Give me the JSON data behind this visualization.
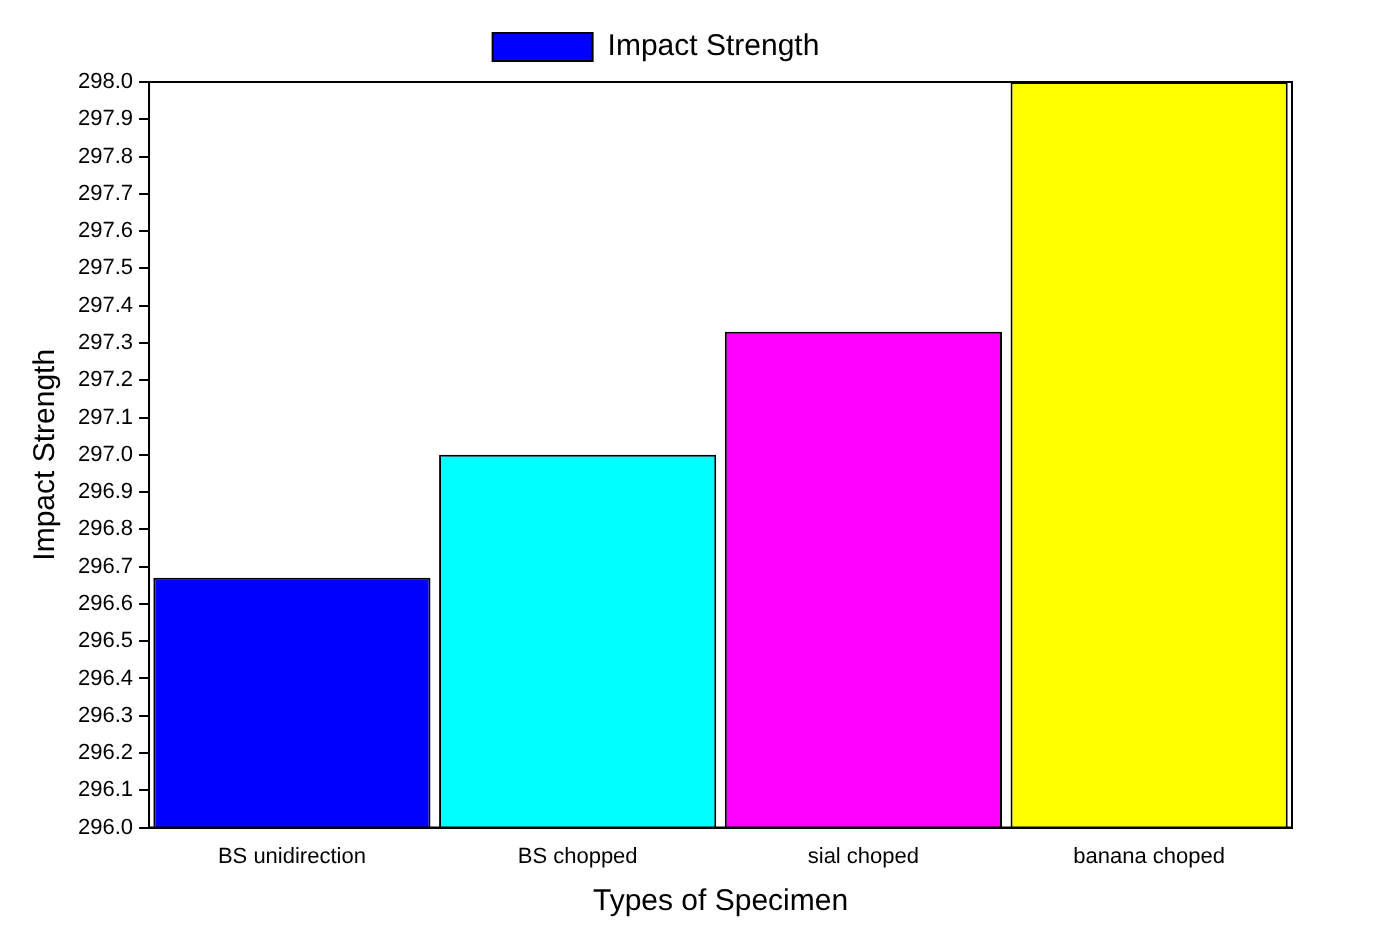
{
  "chart_data": {
    "type": "bar",
    "xlabel": "Types of Specimen",
    "ylabel": "Impact Strength",
    "categories": [
      "BS unidirection",
      "BS chopped",
      "sial choped",
      "banana choped"
    ],
    "series": [
      {
        "name": "Impact Strength",
        "color": "#0000ff",
        "colors": [
          "#0000ff",
          "#00ffff",
          "#ff00ff",
          "#ffff00"
        ],
        "values": [
          296.67,
          297.0,
          297.33,
          298.0
        ]
      }
    ],
    "ylim": [
      296.0,
      298.0
    ],
    "yticks": [
      {
        "value": 296.0,
        "label": "296.0"
      },
      {
        "value": 296.1,
        "label": "296.1"
      },
      {
        "value": 296.2,
        "label": "296.2"
      },
      {
        "value": 296.3,
        "label": "296.3"
      },
      {
        "value": 296.4,
        "label": "296.4"
      },
      {
        "value": 296.5,
        "label": "296.5"
      },
      {
        "value": 296.6,
        "label": "296.6"
      },
      {
        "value": 296.7,
        "label": "296.7"
      },
      {
        "value": 296.8,
        "label": "296.8"
      },
      {
        "value": 296.9,
        "label": "296.9"
      },
      {
        "value": 297.0,
        "label": "297.0"
      },
      {
        "value": 297.1,
        "label": "297.1"
      },
      {
        "value": 297.2,
        "label": "297.2"
      },
      {
        "value": 297.3,
        "label": "297.3"
      },
      {
        "value": 297.4,
        "label": "297.4"
      },
      {
        "value": 297.5,
        "label": "297.5"
      },
      {
        "value": 297.6,
        "label": "297.6"
      },
      {
        "value": 297.7,
        "label": "297.7"
      },
      {
        "value": 297.8,
        "label": "297.8"
      },
      {
        "value": 297.9,
        "label": "297.9"
      },
      {
        "value": 298.0,
        "label": "298.0"
      }
    ],
    "legend": "top",
    "grid": false
  }
}
